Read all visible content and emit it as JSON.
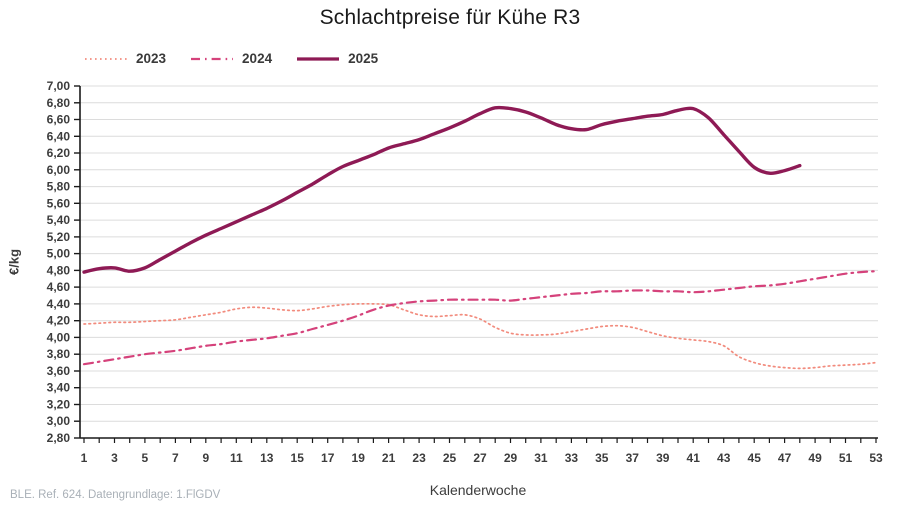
{
  "page": {
    "title": "Schlachtpreise für Kühe R3"
  },
  "footer": {
    "source": "BLE. Ref. 624. Datengrundlage: 1.FlGDV"
  },
  "colors": {
    "grid": "#dcdcdc",
    "axis": "#1a1a1a",
    "tick_label": "#3c3c3c",
    "title": "#1a1a1a",
    "footer": "#a9b0b7"
  },
  "chart_data": {
    "type": "line",
    "title": "Schlachtpreise für Kühe R3",
    "xlabel": "Kalenderwoche",
    "ylabel": "€/kg",
    "ylim": [
      2.8,
      7.0
    ],
    "ystep": 0.2,
    "xlim": [
      1,
      53
    ],
    "x_ticks": [
      1,
      3,
      5,
      7,
      9,
      11,
      13,
      15,
      17,
      19,
      21,
      23,
      25,
      27,
      29,
      31,
      33,
      35,
      37,
      39,
      41,
      43,
      45,
      47,
      49,
      51,
      53
    ],
    "decimal_separator": ",",
    "grid": "horizontal",
    "legend_position": "top-left",
    "series": [
      {
        "name": "2023",
        "color": "#f28b7d",
        "style": "dotted",
        "x": [
          1,
          2,
          3,
          4,
          5,
          6,
          7,
          8,
          9,
          10,
          11,
          12,
          13,
          14,
          15,
          16,
          17,
          18,
          19,
          20,
          21,
          22,
          23,
          24,
          25,
          26,
          27,
          28,
          29,
          30,
          31,
          32,
          33,
          34,
          35,
          36,
          37,
          38,
          39,
          40,
          41,
          42,
          43,
          44,
          45,
          46,
          47,
          48,
          49,
          50,
          51,
          52,
          53
        ],
        "values": [
          4.16,
          4.17,
          4.18,
          4.18,
          4.19,
          4.2,
          4.21,
          4.24,
          4.27,
          4.3,
          4.34,
          4.36,
          4.35,
          4.33,
          4.32,
          4.34,
          4.37,
          4.39,
          4.4,
          4.4,
          4.39,
          4.33,
          4.27,
          4.25,
          4.26,
          4.27,
          4.22,
          4.12,
          4.05,
          4.03,
          4.03,
          4.04,
          4.07,
          4.1,
          4.13,
          4.14,
          4.12,
          4.07,
          4.02,
          3.99,
          3.97,
          3.95,
          3.9,
          3.77,
          3.7,
          3.66,
          3.64,
          3.63,
          3.64,
          3.66,
          3.67,
          3.68,
          3.7
        ]
      },
      {
        "name": "2024",
        "color": "#d5427b",
        "style": "dashdot",
        "x": [
          1,
          2,
          3,
          4,
          5,
          6,
          7,
          8,
          9,
          10,
          11,
          12,
          13,
          14,
          15,
          16,
          17,
          18,
          19,
          20,
          21,
          22,
          23,
          24,
          25,
          26,
          27,
          28,
          29,
          30,
          31,
          32,
          33,
          34,
          35,
          36,
          37,
          38,
          39,
          40,
          41,
          42,
          43,
          44,
          45,
          46,
          47,
          48,
          49,
          50,
          51,
          52,
          53
        ],
        "values": [
          3.68,
          3.71,
          3.74,
          3.77,
          3.8,
          3.82,
          3.84,
          3.87,
          3.9,
          3.92,
          3.95,
          3.97,
          3.99,
          4.02,
          4.05,
          4.1,
          4.15,
          4.2,
          4.26,
          4.33,
          4.38,
          4.41,
          4.43,
          4.44,
          4.45,
          4.45,
          4.45,
          4.45,
          4.44,
          4.46,
          4.48,
          4.5,
          4.52,
          4.53,
          4.55,
          4.55,
          4.56,
          4.56,
          4.55,
          4.55,
          4.54,
          4.55,
          4.57,
          4.59,
          4.61,
          4.62,
          4.64,
          4.67,
          4.7,
          4.73,
          4.76,
          4.78,
          4.79
        ]
      },
      {
        "name": "2025",
        "color": "#8e1a55",
        "style": "solid",
        "x": [
          1,
          2,
          3,
          4,
          5,
          6,
          7,
          8,
          9,
          10,
          11,
          12,
          13,
          14,
          15,
          16,
          17,
          18,
          19,
          20,
          21,
          22,
          23,
          24,
          25,
          26,
          27,
          28,
          29,
          30,
          31,
          32,
          33,
          34,
          35,
          36,
          37,
          38,
          39,
          40,
          41,
          42,
          43,
          44,
          45,
          46,
          47,
          48
        ],
        "values": [
          4.78,
          4.82,
          4.83,
          4.79,
          4.83,
          4.93,
          5.03,
          5.13,
          5.22,
          5.3,
          5.38,
          5.46,
          5.54,
          5.63,
          5.73,
          5.83,
          5.94,
          6.04,
          6.11,
          6.18,
          6.26,
          6.31,
          6.36,
          6.43,
          6.5,
          6.58,
          6.67,
          6.74,
          6.73,
          6.69,
          6.62,
          6.54,
          6.49,
          6.48,
          6.54,
          6.58,
          6.61,
          6.64,
          6.66,
          6.71,
          6.73,
          6.62,
          6.42,
          6.22,
          6.03,
          5.96,
          5.99,
          6.05
        ]
      }
    ]
  }
}
